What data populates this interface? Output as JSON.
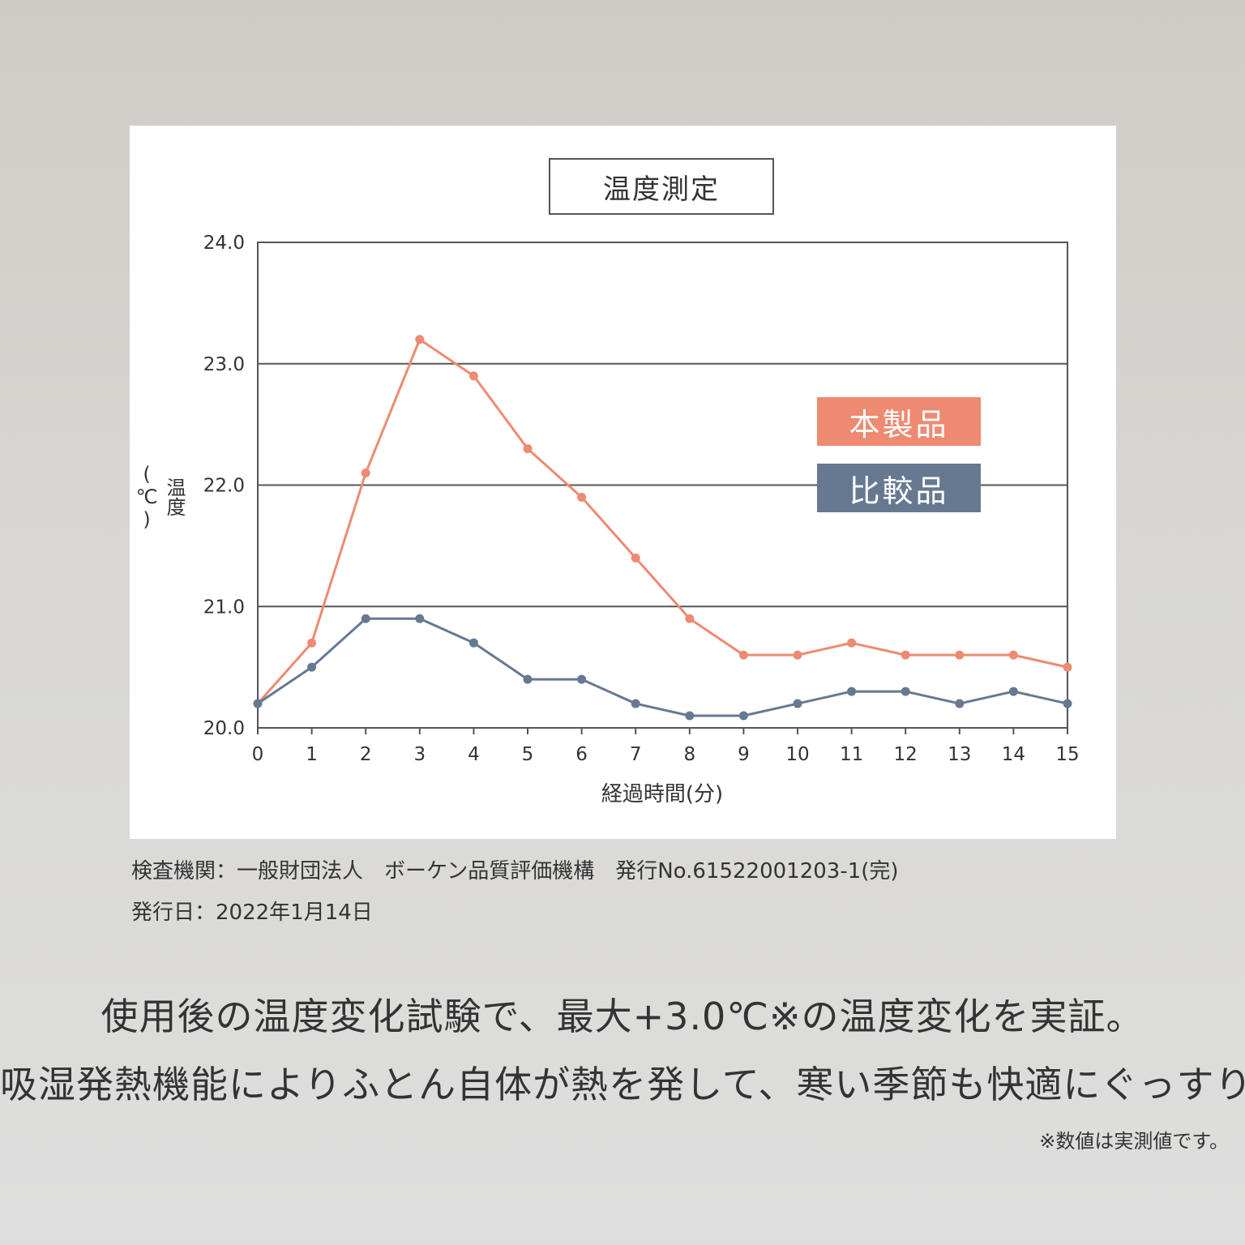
{
  "colors": {
    "product": "#ee8a72",
    "comparison": "#677991",
    "grid": "#555555"
  },
  "chart_data": {
    "type": "line",
    "title": "温度測定",
    "xlabel": "経過時間(分)",
    "ylabel": "温度(℃)",
    "x": [
      0,
      1,
      2,
      3,
      4,
      5,
      6,
      7,
      8,
      9,
      10,
      11,
      12,
      13,
      14,
      15
    ],
    "x_ticks": [
      "0",
      "1",
      "2",
      "3",
      "4",
      "5",
      "6",
      "7",
      "8",
      "9",
      "10",
      "11",
      "12",
      "13",
      "14",
      "15"
    ],
    "y_ticks": [
      "20.0",
      "21.0",
      "22.0",
      "23.0",
      "24.0"
    ],
    "ylim": [
      20.0,
      24.0
    ],
    "xlim": [
      0,
      15
    ],
    "grid": "horizontal",
    "legend_position": "right",
    "series": [
      {
        "name": "本製品",
        "color": "#ee8a72",
        "values": [
          20.2,
          20.7,
          22.1,
          23.2,
          22.9,
          22.3,
          21.9,
          21.4,
          20.9,
          20.6,
          20.6,
          20.7,
          20.6,
          20.6,
          20.6,
          20.5
        ]
      },
      {
        "name": "比較品",
        "color": "#677991",
        "values": [
          20.2,
          20.5,
          20.9,
          20.9,
          20.7,
          20.4,
          20.4,
          20.2,
          20.1,
          20.1,
          20.2,
          20.3,
          20.3,
          20.2,
          20.3,
          20.2
        ]
      }
    ]
  },
  "source": {
    "line1": "検査機関：一般財団法人　ボーケン品質評価機構　発行No.61522001203-1(完)",
    "line2": "発行日：2022年1月14日"
  },
  "headline": {
    "line1": "使用後の温度変化試験で、最大+3.0℃※の温度変化を実証。",
    "line2": "吸湿発熱機能によりふとん自体が熱を発して、寒い季節も快適にぐっすり。"
  },
  "note": "※数値は実測値です。"
}
